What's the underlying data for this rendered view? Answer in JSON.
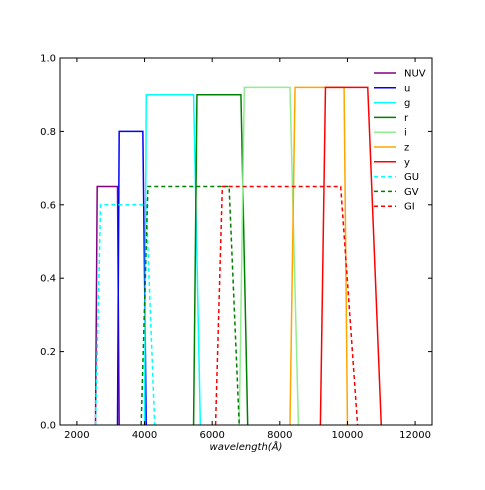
{
  "chart_data": {
    "type": "line",
    "title": "",
    "xlabel": "wavelength(Å)",
    "ylabel": "",
    "xlim": [
      1500,
      12500
    ],
    "ylim": [
      0.0,
      1.0
    ],
    "xticks": [
      2000,
      4000,
      6000,
      8000,
      10000,
      12000
    ],
    "yticks": [
      0.0,
      0.2,
      0.4,
      0.6,
      0.8,
      1.0
    ],
    "xtick_labels": [
      "2000",
      "4000",
      "6000",
      "8000",
      "10000",
      "12000"
    ],
    "ytick_labels": [
      "0.0",
      "0.2",
      "0.4",
      "0.6",
      "0.8",
      "1.0"
    ],
    "grid": false,
    "legend_position": "top-right",
    "series": [
      {
        "name": "NUV",
        "color": "#800080",
        "dash": "solid",
        "x": [
          2550,
          2600,
          3200,
          3250
        ],
        "y": [
          0,
          0.65,
          0.65,
          0
        ]
      },
      {
        "name": "u",
        "color": "#0000ff",
        "dash": "solid",
        "x": [
          3200,
          3250,
          3950,
          4050
        ],
        "y": [
          0,
          0.8,
          0.8,
          0
        ]
      },
      {
        "name": "g",
        "color": "#00ffff",
        "dash": "solid",
        "x": [
          4000,
          4050,
          5450,
          5650
        ],
        "y": [
          0,
          0.9,
          0.9,
          0
        ]
      },
      {
        "name": "r",
        "color": "#008000",
        "dash": "solid",
        "x": [
          5450,
          5550,
          6850,
          7050
        ],
        "y": [
          0,
          0.9,
          0.9,
          0
        ]
      },
      {
        "name": "i",
        "color": "#90ee90",
        "dash": "solid",
        "x": [
          6800,
          6950,
          8300,
          8550
        ],
        "y": [
          0,
          0.92,
          0.92,
          0
        ]
      },
      {
        "name": "z",
        "color": "#ffa500",
        "dash": "solid",
        "x": [
          8300,
          8450,
          9900,
          10000
        ],
        "y": [
          0,
          0.92,
          0.92,
          0
        ]
      },
      {
        "name": "y",
        "color": "#ff0000",
        "dash": "solid",
        "x": [
          9200,
          9350,
          10600,
          11000
        ],
        "y": [
          0,
          0.92,
          0.92,
          0
        ]
      },
      {
        "name": "GU",
        "color": "#00ffff",
        "dash": "dashed",
        "x": [
          2550,
          2700,
          4050,
          4300
        ],
        "y": [
          0,
          0.6,
          0.6,
          0
        ]
      },
      {
        "name": "GV",
        "color": "#008000",
        "dash": "dashed",
        "x": [
          3900,
          4100,
          6500,
          6800
        ],
        "y": [
          0,
          0.65,
          0.65,
          0
        ]
      },
      {
        "name": "GI",
        "color": "#ff0000",
        "dash": "dashed",
        "x": [
          6100,
          6300,
          9800,
          10300
        ],
        "y": [
          0,
          0.65,
          0.65,
          0
        ]
      }
    ]
  }
}
